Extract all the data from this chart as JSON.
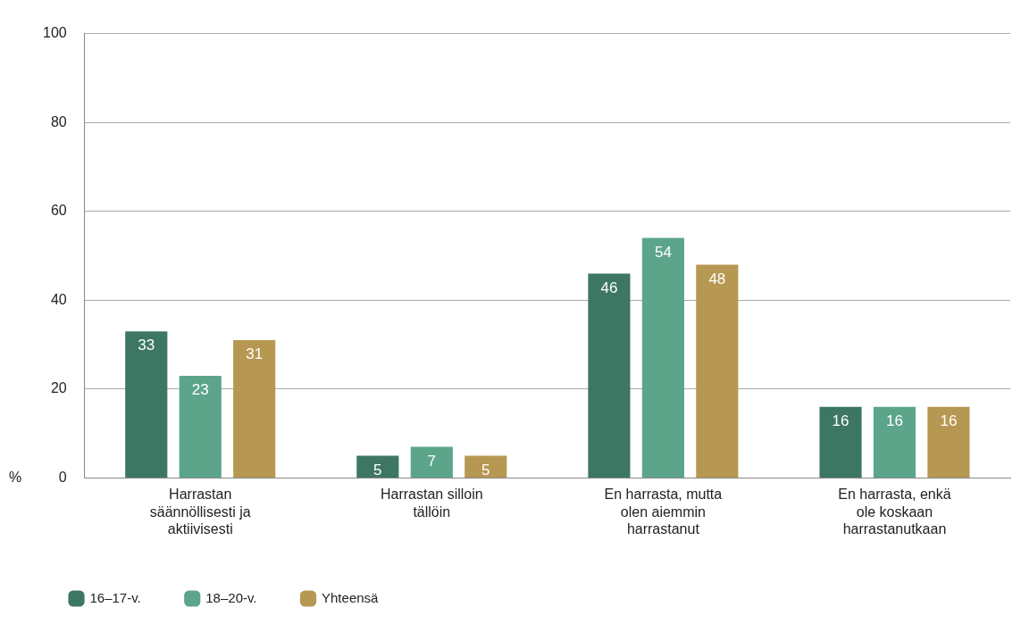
{
  "chart_data": {
    "type": "bar",
    "ylabel": "%",
    "categories": [
      "Harrastan säännöllisesti ja aktiivisesti",
      "Harrastan silloin tällöin",
      "En harrasta, mutta olen aiemmin harrastanut",
      "En harrasta, enkä ole koskaan harrastanutkaan"
    ],
    "series": [
      {
        "name": "16–17-v.",
        "color": "#3d7763",
        "values": [
          33,
          5,
          46,
          16
        ]
      },
      {
        "name": "18–20-v.",
        "color": "#5ca58a",
        "values": [
          23,
          7,
          54,
          16
        ]
      },
      {
        "name": "Yhteensä",
        "color": "#b79852",
        "values": [
          31,
          5,
          48,
          16
        ]
      }
    ],
    "ylim": [
      0,
      100
    ],
    "yticks": [
      0,
      20,
      40,
      60,
      80,
      100
    ],
    "grid": "y",
    "legend": "bottom left",
    "data_labels": true
  }
}
